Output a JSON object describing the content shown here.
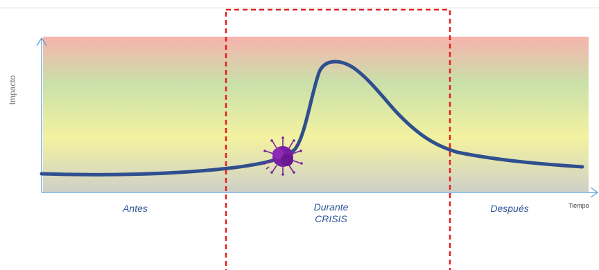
{
  "axes": {
    "y_label": "Impacto",
    "x_label": "Tiempo"
  },
  "phases": {
    "before": "Antes",
    "during": "Durante",
    "during_sub": "CRISIS",
    "after": "Después"
  },
  "colors": {
    "curve": "#2f4f8f",
    "axis": "#5b9bd5",
    "crisis_frame": "#e02020",
    "virus": "#7a1fa2",
    "band_top": "#f7b3ad",
    "band_mid": "#c4dfa8",
    "band_low": "#f3f2a0",
    "band_bottom": "#cfd1c7",
    "phase_text": "#2f5597"
  }
}
